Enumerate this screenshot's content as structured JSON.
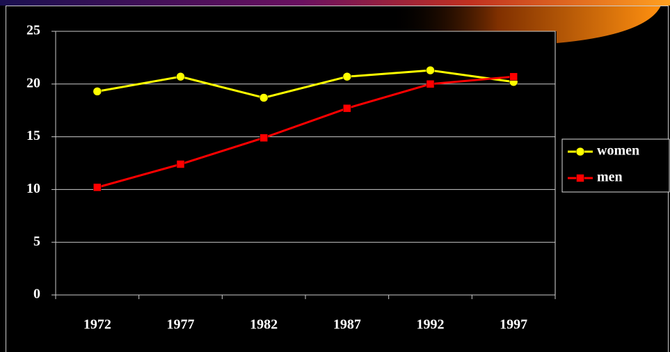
{
  "chart_data": {
    "type": "line",
    "categories": [
      "1972",
      "1977",
      "1982",
      "1987",
      "1992",
      "1997"
    ],
    "series": [
      {
        "name": "women",
        "color": "#ffff00",
        "marker": "circle",
        "values": [
          19.3,
          20.7,
          18.7,
          20.7,
          21.3,
          20.2
        ]
      },
      {
        "name": "men",
        "color": "#ff0000",
        "marker": "square",
        "values": [
          10.2,
          12.4,
          14.9,
          17.7,
          20.0,
          20.7
        ]
      }
    ],
    "ylim": [
      0,
      25
    ],
    "yticks": [
      0,
      5,
      10,
      15,
      20,
      25
    ],
    "grid": true,
    "legend": "right"
  }
}
